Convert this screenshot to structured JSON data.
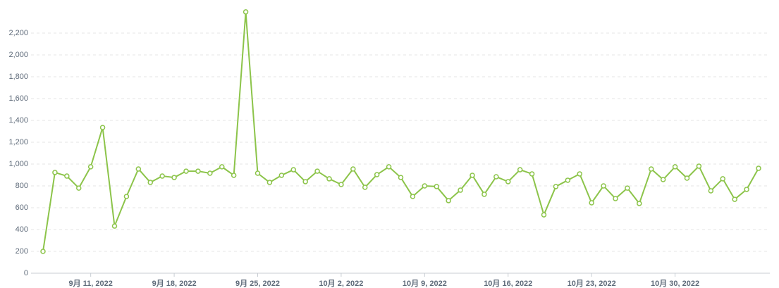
{
  "chart_data": {
    "type": "line",
    "categories": [
      null,
      null,
      null,
      null,
      "9月 11, 2022",
      null,
      null,
      null,
      null,
      null,
      null,
      "9月 18, 2022",
      null,
      null,
      null,
      null,
      null,
      null,
      "9月 25, 2022",
      null,
      null,
      null,
      null,
      null,
      null,
      "10月 2, 2022",
      null,
      null,
      null,
      null,
      null,
      null,
      "10月 9, 2022",
      null,
      null,
      null,
      null,
      null,
      null,
      "10月 16, 2022",
      null,
      null,
      null,
      null,
      null,
      null,
      "10月 23, 2022",
      null,
      null,
      null,
      null,
      null,
      null,
      "10月 30, 2022",
      null,
      null,
      null,
      null,
      null,
      null,
      null
    ],
    "series": [
      {
        "color": "#8cc44a",
        "values": [
          200,
          923,
          890,
          780,
          975,
          1335,
          432,
          703,
          955,
          832,
          890,
          877,
          935,
          935,
          916,
          975,
          897,
          2394,
          916,
          832,
          897,
          948,
          839,
          935,
          865,
          813,
          955,
          787,
          903,
          975,
          877,
          703,
          800,
          794,
          665,
          761,
          897,
          723,
          884,
          839,
          948,
          910,
          535,
          794,
          852,
          910,
          645,
          800,
          684,
          780,
          639,
          955,
          858,
          975,
          871,
          981,
          755,
          865,
          677,
          768,
          961
        ]
      }
    ],
    "ylim": [
      0,
      2400
    ],
    "yticks": [
      0,
      200,
      400,
      600,
      800,
      {
        "value": 1000,
        "label": "1,000"
      },
      {
        "value": 1200,
        "label": "1,200"
      },
      {
        "value": 1400,
        "label": "1,400"
      },
      {
        "value": 1600,
        "label": "1,600"
      },
      {
        "value": 1800,
        "label": "1,800"
      },
      {
        "value": 2000,
        "label": "2,000"
      },
      {
        "value": 2200,
        "label": "2,200"
      }
    ],
    "grid": true
  }
}
